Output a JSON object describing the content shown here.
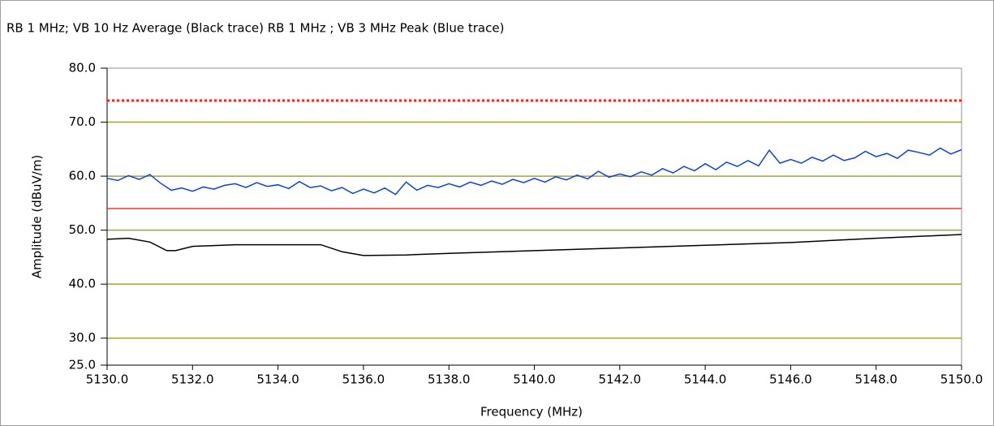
{
  "chart_data": {
    "type": "line",
    "title": "RB 1 MHz; VB 10 Hz Average (Black trace)   RB 1 MHz ; VB 3 MHz Peak (Blue trace)",
    "x_label": "Frequency (MHz)",
    "y_label": "Amplitude (dBuV/m)",
    "xlim": [
      5130,
      5150
    ],
    "xticks": [
      {
        "value": 5130,
        "label": "5130.0"
      },
      {
        "value": 5132,
        "label": "5132.0"
      },
      {
        "value": 5134,
        "label": "5134.0"
      },
      {
        "value": 5136,
        "label": "5136.0"
      },
      {
        "value": 5138,
        "label": "5138.0"
      },
      {
        "value": 5140,
        "label": "5140.0"
      },
      {
        "value": 5142,
        "label": "5142.0"
      },
      {
        "value": 5144,
        "label": "5144.0"
      },
      {
        "value": 5146,
        "label": "5146.0"
      },
      {
        "value": 5148,
        "label": "5148.0"
      },
      {
        "value": 5150,
        "label": "5150.0"
      }
    ],
    "ylim": [
      25,
      80
    ],
    "yticks": [
      {
        "value": 25,
        "label": "25.0"
      },
      {
        "value": 30,
        "label": "30.0"
      },
      {
        "value": 40,
        "label": "40.0"
      },
      {
        "value": 50,
        "label": "50.0"
      },
      {
        "value": 60,
        "label": "60.0"
      },
      {
        "value": 70,
        "label": "70.0"
      },
      {
        "value": 80,
        "label": "80.0"
      }
    ],
    "grid": true,
    "grid_color": "#a3a33a",
    "limit_lines": [
      {
        "value": 74,
        "color": "#ff2020",
        "style": "dotted"
      },
      {
        "value": 54,
        "color": "#ff3030",
        "style": "solid"
      }
    ],
    "series": [
      {
        "name": "Average",
        "color": "#000000",
        "x": [
          5130,
          5130.5,
          5131,
          5131.4,
          5131.6,
          5132,
          5133,
          5135,
          5135.5,
          5136,
          5137,
          5138,
          5140,
          5142,
          5144,
          5146,
          5148,
          5150
        ],
        "values": [
          48.3,
          48.5,
          47.8,
          46.2,
          46.2,
          47,
          47.3,
          47.3,
          46,
          45.3,
          45.4,
          45.7,
          46.2,
          46.7,
          47.2,
          47.7,
          48.5,
          49.2
        ]
      },
      {
        "name": "Peak",
        "color": "#1040e0",
        "x": [
          5130,
          5130.25,
          5130.5,
          5130.75,
          5131,
          5131.25,
          5131.5,
          5131.75,
          5132,
          5132.25,
          5132.5,
          5132.75,
          5133,
          5133.25,
          5133.5,
          5133.75,
          5134,
          5134.25,
          5134.5,
          5134.75,
          5135,
          5135.25,
          5135.5,
          5135.75,
          5136,
          5136.25,
          5136.5,
          5136.75,
          5137,
          5137.25,
          5137.5,
          5137.75,
          5138,
          5138.25,
          5138.5,
          5138.75,
          5139,
          5139.25,
          5139.5,
          5139.75,
          5140,
          5140.25,
          5140.5,
          5140.75,
          5141,
          5141.25,
          5141.5,
          5141.75,
          5142,
          5142.25,
          5142.5,
          5142.75,
          5143,
          5143.25,
          5143.5,
          5143.75,
          5144,
          5144.25,
          5144.5,
          5144.75,
          5145,
          5145.25,
          5145.5,
          5145.75,
          5146,
          5146.25,
          5146.5,
          5146.75,
          5147,
          5147.25,
          5147.5,
          5147.75,
          5148,
          5148.25,
          5148.5,
          5148.75,
          5149,
          5149.25,
          5149.5,
          5149.75,
          5150
        ],
        "values": [
          59.6,
          59.2,
          60.1,
          59.4,
          60.3,
          58.7,
          57.4,
          57.8,
          57.2,
          58.0,
          57.6,
          58.3,
          58.6,
          57.9,
          58.8,
          58.1,
          58.4,
          57.7,
          59.0,
          57.9,
          58.2,
          57.3,
          57.9,
          56.8,
          57.6,
          56.9,
          57.8,
          56.6,
          58.9,
          57.4,
          58.3,
          57.9,
          58.6,
          58.0,
          58.9,
          58.3,
          59.1,
          58.5,
          59.4,
          58.8,
          59.6,
          58.9,
          59.9,
          59.3,
          60.2,
          59.5,
          60.9,
          59.8,
          60.4,
          59.9,
          60.8,
          60.2,
          61.4,
          60.6,
          61.8,
          61.0,
          62.3,
          61.2,
          62.6,
          61.8,
          62.9,
          61.9,
          64.8,
          62.4,
          63.1,
          62.4,
          63.5,
          62.8,
          63.9,
          62.9,
          63.4,
          64.6,
          63.6,
          64.2,
          63.3,
          64.8,
          64.4,
          63.9,
          65.2,
          64.1,
          64.9
        ]
      }
    ]
  }
}
